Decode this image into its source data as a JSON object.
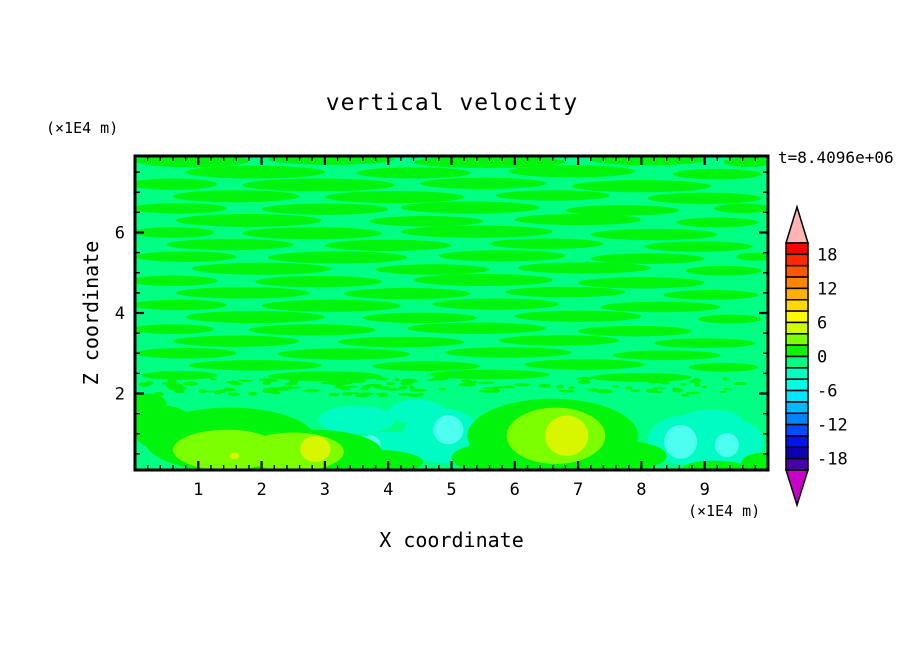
{
  "title": "vertical velocity",
  "timestamp": "t=8.4096e+06",
  "axes": {
    "x": {
      "label": "X coordinate",
      "unit": "(×1E4 m)",
      "min": 0,
      "max": 10,
      "major_ticks": [
        1,
        2,
        3,
        4,
        5,
        6,
        7,
        8,
        9
      ],
      "minor_step": 0.2
    },
    "z": {
      "label": "Z coordinate",
      "unit": "(×1E4 m)",
      "min": 0.1,
      "max": 7.9,
      "major_ticks": [
        2,
        4,
        6
      ],
      "minor_step": 0.5
    }
  },
  "colorbar": {
    "top_value": 20,
    "level_step": 2,
    "labels": [
      "18",
      "12",
      "6",
      "0",
      "-6",
      "-12",
      "-18"
    ],
    "label_values": [
      18,
      12,
      6,
      0,
      -6,
      -12,
      -18
    ],
    "segment_colors": [
      "#f80400",
      "#ff2800",
      "#ff5600",
      "#ff8400",
      "#ffb000",
      "#ffd800",
      "#fcfc00",
      "#d0ff00",
      "#7cff00",
      "#0cf400",
      "#00ff82",
      "#00ffc0",
      "#00ffe6",
      "#00e6ff",
      "#00b8ff",
      "#0084ff",
      "#004cff",
      "#0014e8",
      "#0c00b0",
      "#4a00a8"
    ],
    "over_color": "#ffb4b4",
    "under_color": "#c800c8"
  },
  "chart_data": {
    "type": "filled_contour",
    "title": "vertical velocity",
    "xlabel": "X coordinate (×1E4 m)",
    "ylabel": "Z coordinate (×1E4 m)",
    "xlim": [
      0,
      10
    ],
    "zlim": [
      0.1,
      7.9
    ],
    "contour_interval": 2,
    "value_range_shown": [
      -20,
      20
    ],
    "field_colors": {
      "background": "#00ff82",
      "streak": "#00f40c",
      "chartreuse": "#7cff00",
      "yellow": "#d8f600",
      "turquoise": "#00fcc2",
      "palecyan": "#4cffee"
    },
    "background_level": "-2 to 0",
    "streaks": [
      [
        0.9,
        7.78,
        0.9,
        0.16
      ],
      [
        3.1,
        7.82,
        1.0,
        0.14
      ],
      [
        5.6,
        7.75,
        1.2,
        0.15
      ],
      [
        8.1,
        7.8,
        0.9,
        0.13
      ],
      [
        9.7,
        7.75,
        0.4,
        0.12
      ],
      [
        1.9,
        7.5,
        1.1,
        0.16
      ],
      [
        4.4,
        7.48,
        0.9,
        0.14
      ],
      [
        6.9,
        7.52,
        1.0,
        0.15
      ],
      [
        9.2,
        7.45,
        0.7,
        0.13
      ],
      [
        0.6,
        7.2,
        0.7,
        0.14
      ],
      [
        2.9,
        7.18,
        1.2,
        0.16
      ],
      [
        5.5,
        7.22,
        1.0,
        0.14
      ],
      [
        8.0,
        7.15,
        1.1,
        0.15
      ],
      [
        1.6,
        6.9,
        1.0,
        0.15
      ],
      [
        4.1,
        6.88,
        1.1,
        0.15
      ],
      [
        6.6,
        6.92,
        0.9,
        0.13
      ],
      [
        9.0,
        6.85,
        0.9,
        0.14
      ],
      [
        0.7,
        6.6,
        0.75,
        0.13
      ],
      [
        3.0,
        6.58,
        1.0,
        0.14
      ],
      [
        5.3,
        6.62,
        1.1,
        0.15
      ],
      [
        7.7,
        6.55,
        0.9,
        0.13
      ],
      [
        9.6,
        6.6,
        0.45,
        0.12
      ],
      [
        1.8,
        6.3,
        1.15,
        0.16
      ],
      [
        4.6,
        6.28,
        0.9,
        0.13
      ],
      [
        7.0,
        6.32,
        1.0,
        0.14
      ],
      [
        9.2,
        6.25,
        0.65,
        0.12
      ],
      [
        0.6,
        6.0,
        0.65,
        0.13
      ],
      [
        2.8,
        5.98,
        1.1,
        0.15
      ],
      [
        5.4,
        6.02,
        1.2,
        0.15
      ],
      [
        8.2,
        5.95,
        1.0,
        0.14
      ],
      [
        1.5,
        5.7,
        1.0,
        0.14
      ],
      [
        4.0,
        5.68,
        1.0,
        0.14
      ],
      [
        6.5,
        5.72,
        0.9,
        0.13
      ],
      [
        8.9,
        5.65,
        0.85,
        0.13
      ],
      [
        0.8,
        5.4,
        0.8,
        0.13
      ],
      [
        3.2,
        5.38,
        1.1,
        0.15
      ],
      [
        5.8,
        5.42,
        1.0,
        0.14
      ],
      [
        8.1,
        5.35,
        0.9,
        0.13
      ],
      [
        9.8,
        5.4,
        0.3,
        0.1
      ],
      [
        2.0,
        5.1,
        1.1,
        0.15
      ],
      [
        4.7,
        5.08,
        0.9,
        0.13
      ],
      [
        7.1,
        5.12,
        1.05,
        0.14
      ],
      [
        9.3,
        5.05,
        0.6,
        0.12
      ],
      [
        0.6,
        4.8,
        0.7,
        0.13
      ],
      [
        2.9,
        4.78,
        1.0,
        0.14
      ],
      [
        5.5,
        4.82,
        1.1,
        0.15
      ],
      [
        8.0,
        4.75,
        1.0,
        0.14
      ],
      [
        1.7,
        4.5,
        1.05,
        0.14
      ],
      [
        4.3,
        4.48,
        1.0,
        0.14
      ],
      [
        6.8,
        4.52,
        0.95,
        0.13
      ],
      [
        9.1,
        4.45,
        0.75,
        0.12
      ],
      [
        0.7,
        4.2,
        0.75,
        0.13
      ],
      [
        3.1,
        4.18,
        1.1,
        0.15
      ],
      [
        5.7,
        4.22,
        1.0,
        0.14
      ],
      [
        8.3,
        4.15,
        0.95,
        0.13
      ],
      [
        1.9,
        3.9,
        1.1,
        0.15
      ],
      [
        4.5,
        3.88,
        0.9,
        0.13
      ],
      [
        7.0,
        3.92,
        1.0,
        0.14
      ],
      [
        9.4,
        3.85,
        0.5,
        0.11
      ],
      [
        0.6,
        3.6,
        0.65,
        0.12
      ],
      [
        2.8,
        3.58,
        1.0,
        0.14
      ],
      [
        5.4,
        3.62,
        1.1,
        0.14
      ],
      [
        7.9,
        3.55,
        0.9,
        0.13
      ],
      [
        1.6,
        3.3,
        1.0,
        0.14
      ],
      [
        4.2,
        3.28,
        1.0,
        0.13
      ],
      [
        6.7,
        3.32,
        0.95,
        0.13
      ],
      [
        9.0,
        3.25,
        0.8,
        0.12
      ],
      [
        0.8,
        3.0,
        0.8,
        0.13
      ],
      [
        3.3,
        2.98,
        1.05,
        0.14
      ],
      [
        5.9,
        3.02,
        1.0,
        0.13
      ],
      [
        8.4,
        2.95,
        0.85,
        0.12
      ],
      [
        1.9,
        2.7,
        1.05,
        0.13
      ],
      [
        4.6,
        2.68,
        0.85,
        0.12
      ],
      [
        7.1,
        2.72,
        0.95,
        0.13
      ],
      [
        9.3,
        2.65,
        0.55,
        0.11
      ],
      [
        0.7,
        2.45,
        0.6,
        0.11
      ],
      [
        3.0,
        2.43,
        0.9,
        0.12
      ],
      [
        5.6,
        2.47,
        0.95,
        0.12
      ],
      [
        8.0,
        2.4,
        0.8,
        0.11
      ]
    ],
    "speckle_band": {
      "seed": 77,
      "count": 130,
      "z_min": 1.95,
      "z_max": 2.38,
      "left_weight": 0.62,
      "rx_min": 0.04,
      "rx_max": 0.14,
      "rz_min": 0.025,
      "rz_max": 0.055
    },
    "features": {
      "green_0_2": [
        [
          1.5,
          0.85,
          1.35,
          0.8
        ],
        [
          2.8,
          0.55,
          1.1,
          0.55
        ],
        [
          3.8,
          0.3,
          0.75,
          0.3
        ],
        [
          0.45,
          1.15,
          0.5,
          0.55
        ],
        [
          6.6,
          0.95,
          1.35,
          0.92
        ],
        [
          5.85,
          0.4,
          0.85,
          0.4
        ],
        [
          7.65,
          0.45,
          0.75,
          0.38
        ],
        [
          9.15,
          0.15,
          0.5,
          0.18
        ],
        [
          9.92,
          0.25,
          0.35,
          0.28
        ],
        [
          0.2,
          1.75,
          0.3,
          0.25
        ]
      ],
      "chartreuse_2_4": [
        [
          1.45,
          0.6,
          0.85,
          0.5
        ],
        [
          2.5,
          0.55,
          0.8,
          0.48
        ],
        [
          6.65,
          0.95,
          0.78,
          0.7
        ]
      ],
      "yellow_4_6": [
        [
          2.85,
          0.62,
          0.24,
          0.32
        ],
        [
          1.57,
          0.45,
          0.08,
          0.08
        ],
        [
          6.82,
          0.95,
          0.34,
          0.5
        ]
      ],
      "turquoise_m4_m2": [
        [
          4.0,
          0.6,
          0.68,
          0.45
        ],
        [
          4.85,
          0.95,
          0.62,
          0.68
        ],
        [
          3.5,
          1.35,
          0.6,
          0.35
        ],
        [
          4.45,
          1.55,
          0.45,
          0.3
        ],
        [
          8.75,
          0.85,
          0.65,
          0.62
        ],
        [
          9.45,
          0.8,
          0.48,
          0.55
        ],
        [
          9.1,
          1.3,
          0.5,
          0.3
        ]
      ],
      "palecyan_m6_m4": [
        [
          4.95,
          1.1,
          0.24,
          0.36
        ],
        [
          3.72,
          0.7,
          0.17,
          0.26
        ],
        [
          8.62,
          0.8,
          0.26,
          0.42
        ],
        [
          9.35,
          0.72,
          0.19,
          0.3
        ]
      ]
    }
  }
}
